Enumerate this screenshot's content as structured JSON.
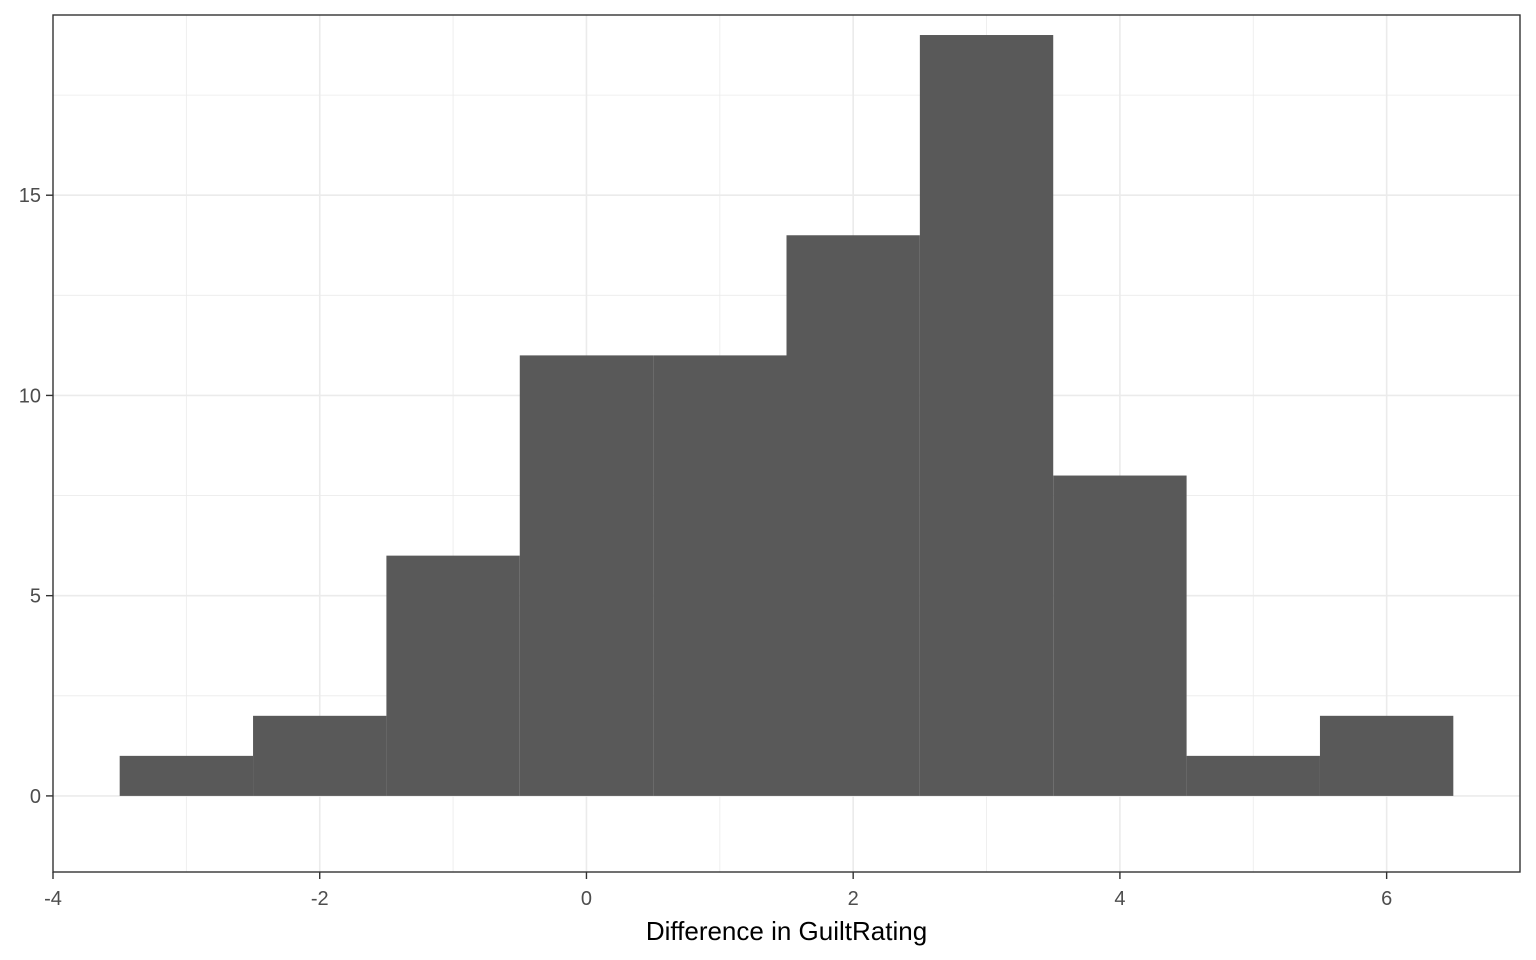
{
  "chart_data": {
    "type": "bar",
    "subtype": "histogram",
    "title": "",
    "xlabel": "Difference in GuiltRating",
    "ylabel": "",
    "xlim": [
      -4,
      7
    ],
    "ylim": [
      -1.9,
      19.5
    ],
    "x_ticks": [
      -4,
      -2,
      0,
      2,
      4,
      6
    ],
    "x_tick_labels": [
      "-4",
      "-2",
      "0",
      "2",
      "4",
      "6"
    ],
    "y_ticks": [
      0,
      5,
      10,
      15
    ],
    "y_tick_labels": [
      "0",
      "5",
      "10",
      "15"
    ],
    "bin_width": 1,
    "bins": [
      {
        "x0": -3.5,
        "x1": -2.5,
        "count": 1
      },
      {
        "x0": -2.5,
        "x1": -1.5,
        "count": 2
      },
      {
        "x0": -1.5,
        "x1": -0.5,
        "count": 6
      },
      {
        "x0": -0.5,
        "x1": 0.5,
        "count": 11
      },
      {
        "x0": 0.5,
        "x1": 1.5,
        "count": 11
      },
      {
        "x0": 1.5,
        "x1": 2.5,
        "count": 14
      },
      {
        "x0": 2.5,
        "x1": 3.5,
        "count": 19
      },
      {
        "x0": 3.5,
        "x1": 4.5,
        "count": 8
      },
      {
        "x0": 4.5,
        "x1": 5.5,
        "count": 1
      },
      {
        "x0": 5.5,
        "x1": 6.5,
        "count": 2
      }
    ],
    "bar_color": "#595959",
    "grid": true,
    "grid_color": "#ebebeb",
    "panel_border_color": "#333333",
    "legend": "none"
  }
}
